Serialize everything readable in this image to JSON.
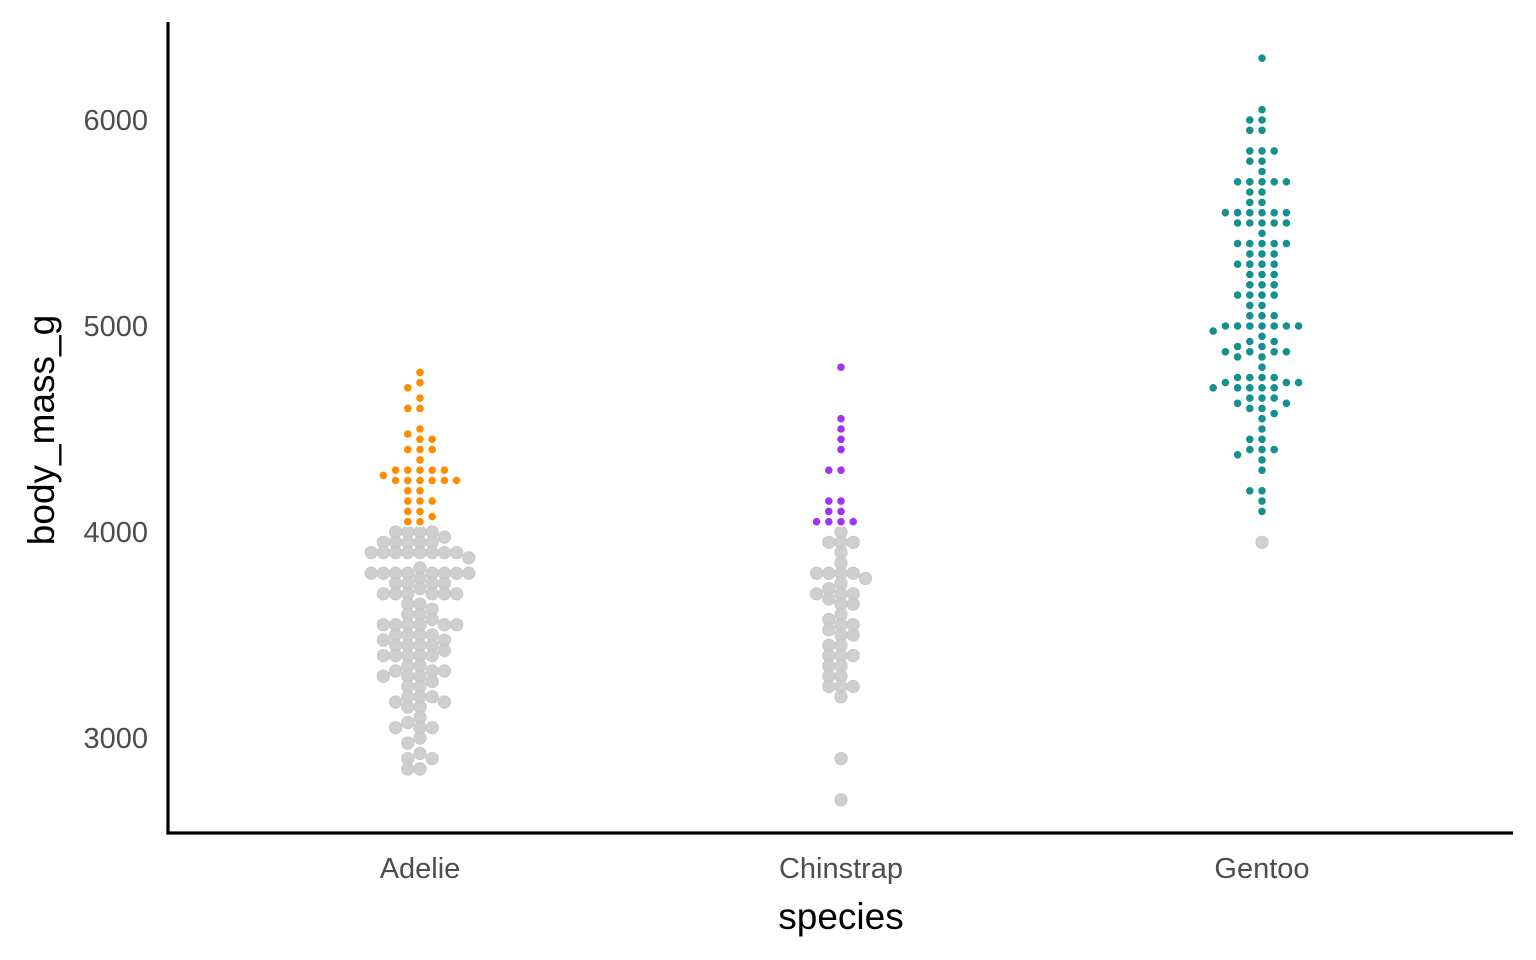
{
  "chart_data": {
    "type": "scatter",
    "subtype": "beeswarm",
    "title": "",
    "xlabel": "species",
    "ylabel": "body_mass_g",
    "categories": [
      "Adelie",
      "Chinstrap",
      "Gentoo"
    ],
    "ylim": [
      2550,
      6470
    ],
    "yticks": [
      3000,
      4000,
      5000,
      6000
    ],
    "ytick_labels": [
      "3000",
      "4000",
      "5000",
      "6000"
    ],
    "grid": false,
    "legend": "none",
    "highlight_rule": "body_mass_g > 4000 colored by species; others gray",
    "colors": {
      "Adelie": "#ff8c00",
      "Chinstrap": "#a034f0",
      "Gentoo": "#159090",
      "other": "#cccccc"
    },
    "series": [
      {
        "name": "Adelie",
        "values": [
          4775,
          4725,
          4700,
          4650,
          4600,
          4600,
          4500,
          4475,
          4450,
          4450,
          4400,
          4400,
          4400,
          4350,
          4300,
          4300,
          4300,
          4300,
          4300,
          4275,
          4250,
          4250,
          4250,
          4250,
          4250,
          4250,
          4200,
          4200,
          4150,
          4150,
          4150,
          4100,
          4100,
          4075,
          4050,
          4050,
          4000,
          4000,
          4000,
          4000,
          3975,
          3950,
          3950,
          3950,
          3950,
          3950,
          3900,
          3900,
          3900,
          3900,
          3900,
          3900,
          3900,
          3900,
          3875,
          3825,
          3800,
          3800,
          3800,
          3800,
          3800,
          3800,
          3800,
          3800,
          3775,
          3750,
          3750,
          3750,
          3750,
          3725,
          3700,
          3700,
          3700,
          3700,
          3700,
          3700,
          3650,
          3650,
          3625,
          3600,
          3600,
          3575,
          3550,
          3550,
          3550,
          3550,
          3550,
          3550,
          3500,
          3500,
          3500,
          3500,
          3475,
          3475,
          3450,
          3450,
          3450,
          3450,
          3425,
          3400,
          3400,
          3400,
          3400,
          3400,
          3350,
          3350,
          3325,
          3325,
          3325,
          3300,
          3300,
          3300,
          3275,
          3250,
          3250,
          3200,
          3200,
          3200,
          3175,
          3175,
          3150,
          3150,
          3100,
          3075,
          3050,
          3050,
          3050,
          3000,
          2975,
          2925,
          2900,
          2900,
          2850,
          2850
        ]
      },
      {
        "name": "Chinstrap",
        "values": [
          4800,
          4550,
          4500,
          4450,
          4400,
          4300,
          4300,
          4150,
          4150,
          4100,
          4100,
          4050,
          4050,
          4050,
          4050,
          4000,
          3950,
          3950,
          3950,
          3900,
          3850,
          3800,
          3800,
          3800,
          3800,
          3775,
          3750,
          3725,
          3700,
          3700,
          3700,
          3675,
          3650,
          3650,
          3600,
          3575,
          3550,
          3550,
          3525,
          3500,
          3500,
          3450,
          3450,
          3400,
          3400,
          3400,
          3350,
          3350,
          3300,
          3300,
          3250,
          3250,
          3250,
          3200,
          2900,
          2700
        ]
      },
      {
        "name": "Gentoo",
        "values": [
          6300,
          6050,
          6000,
          6000,
          5950,
          5950,
          5850,
          5850,
          5850,
          5800,
          5800,
          5750,
          5700,
          5700,
          5700,
          5700,
          5700,
          5650,
          5650,
          5600,
          5600,
          5550,
          5550,
          5550,
          5550,
          5550,
          5550,
          5500,
          5500,
          5500,
          5500,
          5500,
          5450,
          5400,
          5400,
          5400,
          5400,
          5400,
          5350,
          5350,
          5350,
          5300,
          5300,
          5300,
          5300,
          5250,
          5250,
          5250,
          5200,
          5200,
          5200,
          5150,
          5150,
          5150,
          5150,
          5100,
          5100,
          5050,
          5050,
          5050,
          5000,
          5000,
          5000,
          5000,
          5000,
          5000,
          5000,
          4975,
          4950,
          4925,
          4925,
          4900,
          4900,
          4875,
          4875,
          4875,
          4875,
          4850,
          4850,
          4800,
          4750,
          4750,
          4750,
          4750,
          4725,
          4725,
          4725,
          4700,
          4700,
          4700,
          4700,
          4700,
          4650,
          4650,
          4650,
          4625,
          4625,
          4600,
          4600,
          4575,
          4550,
          4500,
          4450,
          4450,
          4400,
          4400,
          4400,
          4375,
          4350,
          4300,
          4200,
          4200,
          4150,
          4100,
          3950
        ]
      }
    ]
  }
}
